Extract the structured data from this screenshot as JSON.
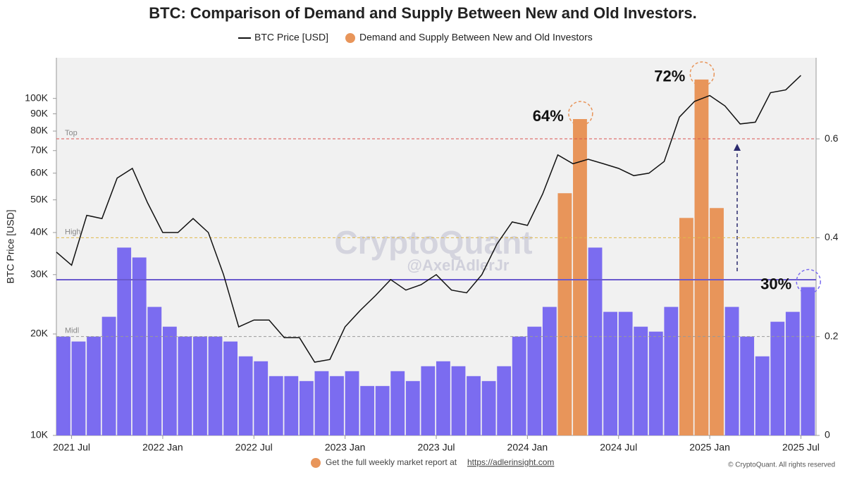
{
  "chart_data": {
    "type": "combo",
    "title": "BTC: Comparison of Demand and Supply Between New and Old Investors.",
    "y_label": "BTC Price [USD]",
    "x": [
      "2021-06",
      "2021-07",
      "2021-08",
      "2021-09",
      "2021-10",
      "2021-11",
      "2021-12",
      "2022-01",
      "2022-02",
      "2022-03",
      "2022-04",
      "2022-05",
      "2022-06",
      "2022-07",
      "2022-08",
      "2022-09",
      "2022-10",
      "2022-11",
      "2022-12",
      "2023-01",
      "2023-02",
      "2023-03",
      "2023-04",
      "2023-05",
      "2023-06",
      "2023-07",
      "2023-08",
      "2023-09",
      "2023-10",
      "2023-11",
      "2023-12",
      "2024-01",
      "2024-02",
      "2024-03",
      "2024-04",
      "2024-05",
      "2024-06",
      "2024-07",
      "2024-08",
      "2024-09",
      "2024-10",
      "2024-11",
      "2024-12",
      "2025-01",
      "2025-02",
      "2025-03",
      "2025-04",
      "2025-05",
      "2025-06",
      "2025-07"
    ],
    "xlim": [
      "2021-06",
      "2025-08"
    ],
    "xticks": [
      {
        "value": "2021-07",
        "label": "2021 Jul"
      },
      {
        "value": "2022-01",
        "label": "2022 Jan"
      },
      {
        "value": "2022-07",
        "label": "2022 Jul"
      },
      {
        "value": "2023-01",
        "label": "2023 Jan"
      },
      {
        "value": "2023-07",
        "label": "2023 Jul"
      },
      {
        "value": "2024-01",
        "label": "2024 Jan"
      },
      {
        "value": "2024-07",
        "label": "2024 Jul"
      },
      {
        "value": "2025-01",
        "label": "2025 Jan"
      },
      {
        "value": "2025-07",
        "label": "2025 Jul"
      }
    ],
    "log_scale_y": true,
    "ylim": [
      10000,
      132000
    ],
    "yticks": [
      {
        "value": 10000,
        "label": "10K"
      },
      {
        "value": 20000,
        "label": "20K"
      },
      {
        "value": 30000,
        "label": "30K"
      },
      {
        "value": 40000,
        "label": "40K"
      },
      {
        "value": 50000,
        "label": "50K"
      },
      {
        "value": 60000,
        "label": "60K"
      },
      {
        "value": 70000,
        "label": "70K"
      },
      {
        "value": 80000,
        "label": "80K"
      },
      {
        "value": 90000,
        "label": "90K"
      },
      {
        "value": 100000,
        "label": "100K"
      }
    ],
    "y2lim": [
      0,
      0.764
    ],
    "y2ticks": [
      0,
      0.2,
      0.4,
      0.6
    ],
    "series": [
      {
        "name": "BTC Price [USD]",
        "type": "line",
        "color": "#111111",
        "values": [
          35000,
          32000,
          45000,
          44000,
          58000,
          62000,
          49000,
          40000,
          40000,
          44000,
          40000,
          30000,
          21000,
          22000,
          22000,
          19500,
          19500,
          16500,
          16800,
          21000,
          23500,
          26000,
          29000,
          27000,
          28000,
          30000,
          27000,
          26500,
          30000,
          37000,
          43000,
          42000,
          52000,
          68000,
          64000,
          66000,
          64000,
          62000,
          59000,
          60000,
          65000,
          88000,
          98000,
          102000,
          95000,
          84000,
          85000,
          104000,
          106000,
          117000
        ]
      },
      {
        "name": "Demand and Supply Between New and Old Investors",
        "type": "bar",
        "axis": "y2",
        "color": "#e8955a",
        "base_color": "#7b6cf0",
        "values": [
          0.2,
          0.19,
          0.2,
          0.24,
          0.38,
          0.36,
          0.26,
          0.22,
          0.2,
          0.2,
          0.2,
          0.19,
          0.16,
          0.15,
          0.12,
          0.12,
          0.11,
          0.13,
          0.12,
          0.13,
          0.1,
          0.1,
          0.13,
          0.11,
          0.14,
          0.15,
          0.14,
          0.12,
          0.11,
          0.14,
          0.2,
          0.22,
          0.26,
          0.49,
          0.64,
          0.38,
          0.25,
          0.25,
          0.22,
          0.21,
          0.26,
          0.44,
          0.72,
          0.46,
          0.26,
          0.2,
          0.16,
          0.23,
          0.25,
          0.3
        ]
      }
    ],
    "levels": [
      {
        "label": "Top",
        "value": 0.6,
        "color": "#d9534f"
      },
      {
        "label": "High",
        "value": 0.4,
        "color": "#e0b84a"
      },
      {
        "label": "Midl",
        "value": 0.2,
        "color": "#999999"
      }
    ],
    "highlight_level": 0.4,
    "reference_line": {
      "value": 0.315,
      "color": "#6a5acd"
    },
    "annotations": [
      {
        "text": "64%",
        "x": "2024-04",
        "value": 0.64
      },
      {
        "text": "72%",
        "x": "2024-12",
        "value": 0.72
      },
      {
        "text": "30%",
        "x": "2025-07",
        "value": 0.3
      }
    ],
    "watermark": [
      "CryptoQuant",
      "@AxelAdlerJr"
    ],
    "footer": [
      "Get the full weekly market report at",
      "https://adlerinsight.com"
    ],
    "copyright": "© CryptoQuant. All rights reserved"
  }
}
